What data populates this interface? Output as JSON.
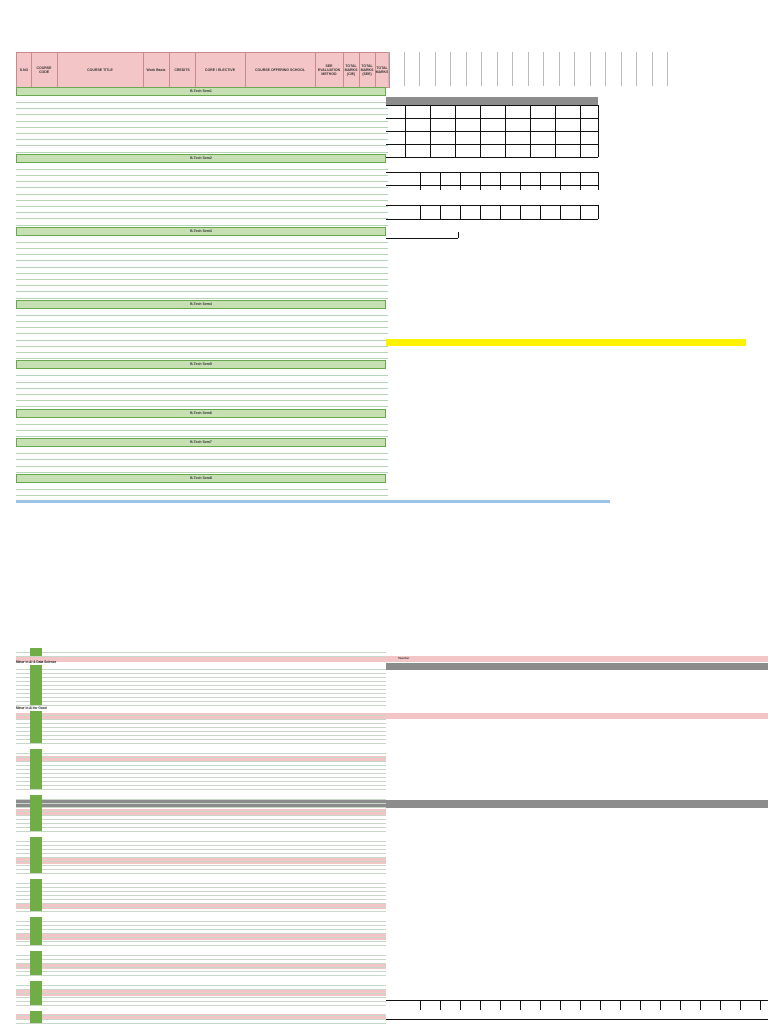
{
  "header": {
    "columns": [
      {
        "key": "sno",
        "label": "S.NO"
      },
      {
        "key": "code",
        "label": "COURSE CODE"
      },
      {
        "key": "title",
        "label": "COURSE TITLE"
      },
      {
        "key": "basket",
        "label": "Work Basis"
      },
      {
        "key": "credits",
        "label": "CREDITS"
      },
      {
        "key": "type",
        "label": "CORE / ELECTIVE"
      },
      {
        "key": "school",
        "label": "COURSE OFFERING SCHOOL"
      },
      {
        "key": "eval",
        "label": "SEE EVALUATION METHOD"
      },
      {
        "key": "cie",
        "label": "TOTAL MARKS (CIE)"
      },
      {
        "key": "see",
        "label": "TOTAL MARKS (SEE)"
      },
      {
        "key": "total",
        "label": "TOTAL MARKS"
      }
    ]
  },
  "semesters": [
    {
      "label": "B.Tech Sem1",
      "rows": [
        {
          "sno": "",
          "code": "",
          "title": "",
          "basket": "",
          "credits": "",
          "type": "",
          "school": "",
          "eval": "",
          "cie": "",
          "see": "",
          "total": ""
        },
        {
          "sno": "",
          "code": "",
          "title": "",
          "basket": "",
          "credits": "",
          "type": "",
          "school": "",
          "eval": "",
          "cie": "",
          "see": "",
          "total": ""
        },
        {
          "sno": "",
          "code": "",
          "title": "",
          "basket": "",
          "credits": "",
          "type": "",
          "school": "",
          "eval": "",
          "cie": "",
          "see": "",
          "total": ""
        },
        {
          "sno": "",
          "code": "",
          "title": "",
          "basket": "",
          "credits": "",
          "type": "",
          "school": "",
          "eval": "",
          "cie": "",
          "see": "",
          "total": ""
        },
        {
          "sno": "",
          "code": "",
          "title": "",
          "basket": "",
          "credits": "",
          "type": "",
          "school": "",
          "eval": "",
          "cie": "",
          "see": "",
          "total": ""
        },
        {
          "sno": "",
          "code": "",
          "title": "",
          "basket": "",
          "credits": "",
          "type": "",
          "school": "",
          "eval": "",
          "cie": "",
          "see": "",
          "total": ""
        },
        {
          "sno": "",
          "code": "",
          "title": "",
          "basket": "",
          "credits": "",
          "type": "",
          "school": "",
          "eval": "",
          "cie": "",
          "see": "",
          "total": ""
        },
        {
          "sno": "",
          "code": "",
          "title": "",
          "basket": "",
          "credits": "",
          "type": "",
          "school": "",
          "eval": "",
          "cie": "",
          "see": "",
          "total": ""
        },
        {
          "sno": "",
          "code": "",
          "title": "",
          "basket": "",
          "credits": "",
          "type": "",
          "school": "",
          "eval": "",
          "cie": "",
          "see": "",
          "total": ""
        }
      ]
    },
    {
      "label": "B.Tech Sem2",
      "rows": [
        {
          "sno": "",
          "code": "",
          "title": "",
          "basket": "",
          "credits": "",
          "type": "",
          "school": "",
          "eval": "",
          "cie": "",
          "see": "",
          "total": ""
        },
        {
          "sno": "",
          "code": "",
          "title": "",
          "basket": "",
          "credits": "",
          "type": "",
          "school": "",
          "eval": "",
          "cie": "",
          "see": "",
          "total": ""
        },
        {
          "sno": "",
          "code": "",
          "title": "",
          "basket": "",
          "credits": "",
          "type": "",
          "school": "",
          "eval": "",
          "cie": "",
          "see": "",
          "total": ""
        },
        {
          "sno": "",
          "code": "",
          "title": "",
          "basket": "",
          "credits": "",
          "type": "",
          "school": "",
          "eval": "",
          "cie": "",
          "see": "",
          "total": ""
        },
        {
          "sno": "",
          "code": "",
          "title": "",
          "basket": "",
          "credits": "",
          "type": "",
          "school": "",
          "eval": "",
          "cie": "",
          "see": "",
          "total": ""
        },
        {
          "sno": "",
          "code": "",
          "title": "",
          "basket": "",
          "credits": "",
          "type": "",
          "school": "",
          "eval": "",
          "cie": "",
          "see": "",
          "total": ""
        },
        {
          "sno": "",
          "code": "",
          "title": "",
          "basket": "",
          "credits": "",
          "type": "",
          "school": "",
          "eval": "",
          "cie": "",
          "see": "",
          "total": ""
        },
        {
          "sno": "",
          "code": "",
          "title": "",
          "basket": "",
          "credits": "",
          "type": "",
          "school": "",
          "eval": "",
          "cie": "",
          "see": "",
          "total": ""
        },
        {
          "sno": "",
          "code": "",
          "title": "",
          "basket": "",
          "credits": "",
          "type": "",
          "school": "",
          "eval": "",
          "cie": "",
          "see": "",
          "total": ""
        },
        {
          "sno": "",
          "code": "",
          "title": "",
          "basket": "",
          "credits": "",
          "type": "",
          "school": "",
          "eval": "",
          "cie": "",
          "see": "",
          "total": ""
        }
      ]
    },
    {
      "label": "B.Tech Sem3",
      "rows": [
        {
          "sno": "",
          "code": "",
          "title": "",
          "basket": "",
          "credits": "",
          "type": "",
          "school": "",
          "eval": "",
          "cie": "",
          "see": "",
          "total": ""
        },
        {
          "sno": "",
          "code": "",
          "title": "",
          "basket": "",
          "credits": "",
          "type": "",
          "school": "",
          "eval": "",
          "cie": "",
          "see": "",
          "total": ""
        },
        {
          "sno": "",
          "code": "",
          "title": "",
          "basket": "",
          "credits": "",
          "type": "",
          "school": "",
          "eval": "",
          "cie": "",
          "see": "",
          "total": ""
        },
        {
          "sno": "",
          "code": "",
          "title": "",
          "basket": "",
          "credits": "",
          "type": "",
          "school": "",
          "eval": "",
          "cie": "",
          "see": "",
          "total": ""
        },
        {
          "sno": "",
          "code": "",
          "title": "",
          "basket": "",
          "credits": "",
          "type": "",
          "school": "",
          "eval": "",
          "cie": "",
          "see": "",
          "total": ""
        },
        {
          "sno": "",
          "code": "",
          "title": "",
          "basket": "",
          "credits": "",
          "type": "",
          "school": "",
          "eval": "",
          "cie": "",
          "see": "",
          "total": ""
        },
        {
          "sno": "",
          "code": "",
          "title": "",
          "basket": "",
          "credits": "",
          "type": "",
          "school": "",
          "eval": "",
          "cie": "",
          "see": "",
          "total": ""
        },
        {
          "sno": "",
          "code": "",
          "title": "",
          "basket": "",
          "credits": "",
          "type": "",
          "school": "",
          "eval": "",
          "cie": "",
          "see": "",
          "total": ""
        },
        {
          "sno": "",
          "code": "",
          "title": "",
          "basket": "",
          "credits": "",
          "type": "",
          "school": "",
          "eval": "",
          "cie": "",
          "see": "",
          "total": ""
        },
        {
          "sno": "",
          "code": "",
          "title": "",
          "basket": "",
          "credits": "",
          "type": "",
          "school": "",
          "eval": "",
          "cie": "",
          "see": "",
          "total": ""
        }
      ]
    },
    {
      "label": "B.Tech Sem4",
      "rows": [
        {
          "sno": "",
          "code": "",
          "title": "",
          "basket": "",
          "credits": "",
          "type": "",
          "school": "",
          "eval": "",
          "cie": "",
          "see": "",
          "total": ""
        },
        {
          "sno": "",
          "code": "",
          "title": "",
          "basket": "",
          "credits": "",
          "type": "",
          "school": "",
          "eval": "",
          "cie": "",
          "see": "",
          "total": ""
        },
        {
          "sno": "",
          "code": "",
          "title": "",
          "basket": "",
          "credits": "",
          "type": "",
          "school": "",
          "eval": "",
          "cie": "",
          "see": "",
          "total": ""
        },
        {
          "sno": "",
          "code": "",
          "title": "",
          "basket": "",
          "credits": "",
          "type": "",
          "school": "",
          "eval": "",
          "cie": "",
          "see": "",
          "total": ""
        },
        {
          "sno": "",
          "code": "",
          "title": "",
          "basket": "",
          "credits": "",
          "type": "",
          "school": "",
          "eval": "",
          "cie": "",
          "see": "",
          "total": ""
        },
        {
          "sno": "",
          "code": "",
          "title": "",
          "basket": "",
          "credits": "",
          "type": "",
          "school": "",
          "eval": "",
          "cie": "",
          "see": "",
          "total": ""
        },
        {
          "sno": "",
          "code": "",
          "title": "",
          "basket": "",
          "credits": "",
          "type": "",
          "school": "",
          "eval": "",
          "cie": "",
          "see": "",
          "total": ""
        },
        {
          "sno": "",
          "code": "",
          "title": "",
          "basket": "",
          "credits": "",
          "type": "",
          "school": "",
          "eval": "",
          "cie": "",
          "see": "",
          "total": ""
        }
      ]
    },
    {
      "label": "B.Tech Sem5",
      "rows": [
        {
          "sno": "",
          "code": "",
          "title": "",
          "basket": "",
          "credits": "",
          "type": "",
          "school": "",
          "eval": "",
          "cie": "",
          "see": "",
          "total": ""
        },
        {
          "sno": "",
          "code": "",
          "title": "",
          "basket": "",
          "credits": "",
          "type": "",
          "school": "",
          "eval": "",
          "cie": "",
          "see": "",
          "total": ""
        },
        {
          "sno": "",
          "code": "",
          "title": "",
          "basket": "",
          "credits": "",
          "type": "",
          "school": "",
          "eval": "",
          "cie": "",
          "see": "",
          "total": ""
        },
        {
          "sno": "",
          "code": "",
          "title": "",
          "basket": "",
          "credits": "",
          "type": "",
          "school": "",
          "eval": "",
          "cie": "",
          "see": "",
          "total": ""
        },
        {
          "sno": "",
          "code": "",
          "title": "",
          "basket": "",
          "credits": "",
          "type": "",
          "school": "",
          "eval": "",
          "cie": "",
          "see": "",
          "total": ""
        },
        {
          "sno": "",
          "code": "",
          "title": "",
          "basket": "",
          "credits": "",
          "type": "",
          "school": "",
          "eval": "",
          "cie": "",
          "see": "",
          "total": ""
        }
      ]
    },
    {
      "label": "B.Tech Sem6",
      "rows": [
        {
          "sno": "",
          "code": "",
          "title": "",
          "basket": "",
          "credits": "",
          "type": "",
          "school": "",
          "eval": "",
          "cie": "",
          "see": "",
          "total": ""
        },
        {
          "sno": "",
          "code": "",
          "title": "",
          "basket": "",
          "credits": "",
          "type": "",
          "school": "",
          "eval": "",
          "cie": "",
          "see": "",
          "total": ""
        },
        {
          "sno": "",
          "code": "",
          "title": "",
          "basket": "",
          "credits": "",
          "type": "",
          "school": "",
          "eval": "",
          "cie": "",
          "see": "",
          "total": ""
        }
      ]
    },
    {
      "label": "B.Tech Sem7",
      "rows": [
        {
          "sno": "",
          "code": "",
          "title": "",
          "basket": "",
          "credits": "",
          "type": "",
          "school": "",
          "eval": "",
          "cie": "",
          "see": "",
          "total": ""
        },
        {
          "sno": "",
          "code": "",
          "title": "",
          "basket": "",
          "credits": "",
          "type": "",
          "school": "",
          "eval": "",
          "cie": "",
          "see": "",
          "total": ""
        },
        {
          "sno": "",
          "code": "",
          "title": "",
          "basket": "",
          "credits": "",
          "type": "",
          "school": "",
          "eval": "",
          "cie": "",
          "see": "",
          "total": ""
        },
        {
          "sno": "",
          "code": "",
          "title": "",
          "basket": "",
          "credits": "",
          "type": "",
          "school": "",
          "eval": "",
          "cie": "",
          "see": "",
          "total": ""
        }
      ]
    },
    {
      "label": "B.Tech Sem8",
      "rows": [
        {
          "sno": "",
          "code": "",
          "title": "",
          "basket": "",
          "credits": "",
          "type": "",
          "school": "",
          "eval": "",
          "cie": "",
          "see": "",
          "total": ""
        },
        {
          "sno": "",
          "code": "",
          "title": "",
          "basket": "",
          "credits": "",
          "type": "",
          "school": "",
          "eval": "",
          "cie": "",
          "see": "",
          "total": ""
        },
        {
          "sno": "",
          "code": "",
          "title": "",
          "basket": "",
          "credits": "",
          "type": "",
          "school": "",
          "eval": "",
          "cie": "",
          "see": "",
          "total": ""
        }
      ]
    }
  ],
  "extra_rows_count_label": "",
  "lower_sections": [
    {
      "label": "Minor in AI & Data Science",
      "rows": 10
    },
    {
      "label": "Minor in AI for Good",
      "rows": 8
    },
    {
      "label": "",
      "rows": 10
    },
    {
      "label": "",
      "rows": 9
    },
    {
      "label": "",
      "rows": 9
    },
    {
      "label": "",
      "rows": 8
    },
    {
      "label": "",
      "rows": 7
    },
    {
      "label": "",
      "rows": 6
    },
    {
      "label": "",
      "rows": 6
    },
    {
      "label": "",
      "rows": 6
    }
  ],
  "teacher_label": "Teacher",
  "colors": {
    "header_pink": "#f4c5c7",
    "sem_green": "#c6e0b4",
    "code_green": "#70ad47",
    "highlight_yellow": "#fff200",
    "separator_blue": "#9fc3e7",
    "band_gray": "#8c8c8c"
  }
}
